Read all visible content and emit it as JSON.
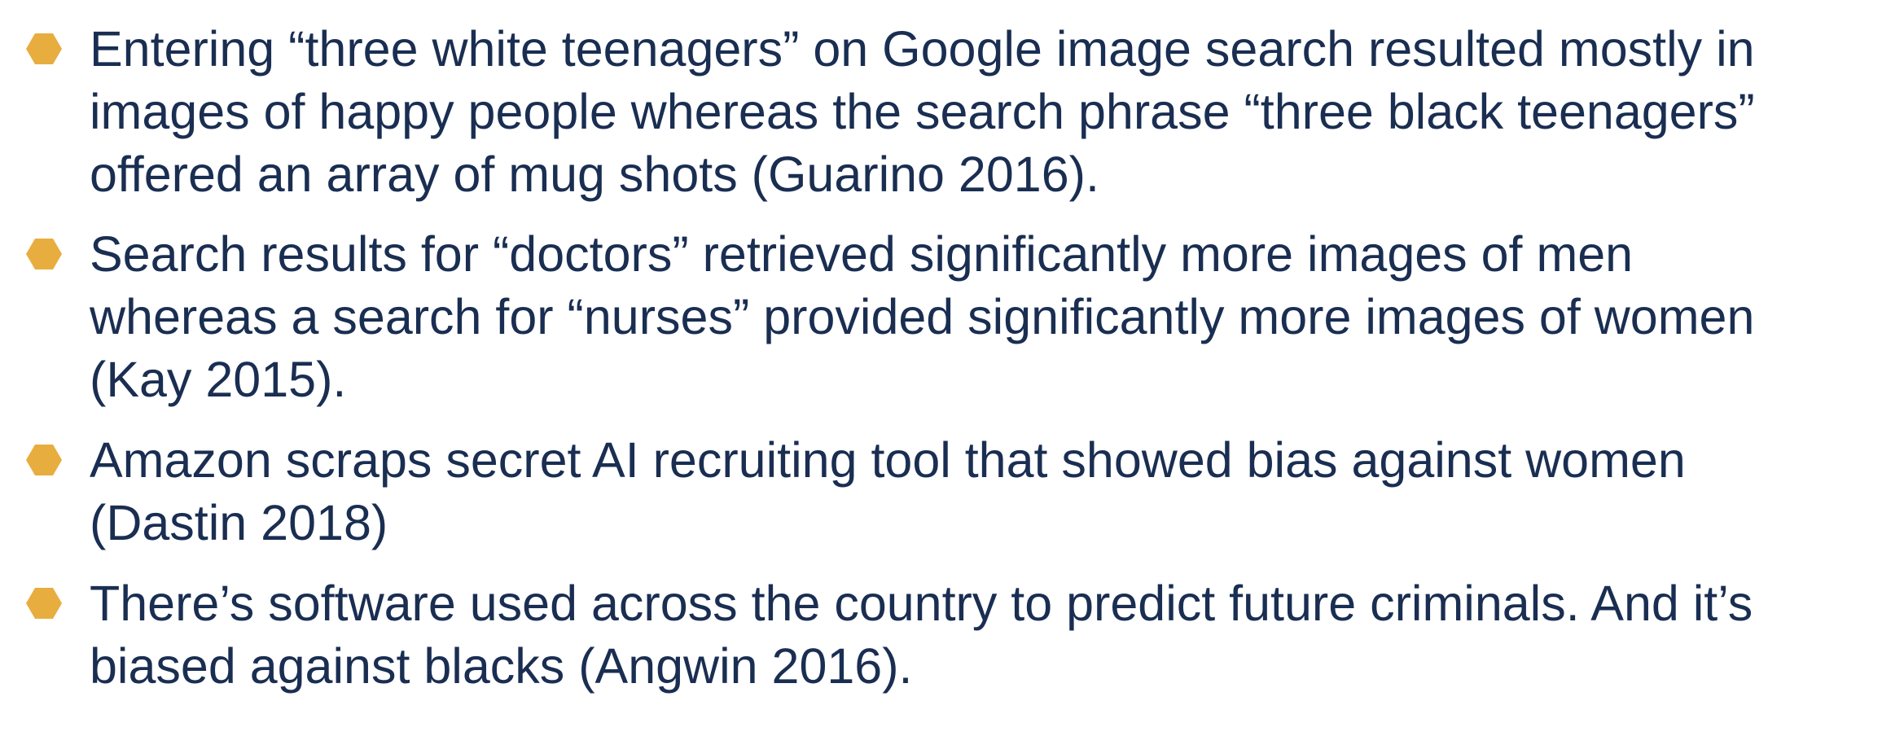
{
  "colors": {
    "bullet": "#e8ad3f",
    "text": "#1a2e52",
    "background": "#ffffff"
  },
  "bullets": [
    {
      "icon": "hexagon-bullet-icon",
      "text": "Entering “three white teenagers” on Google image search resulted mostly in\nimages of happy people whereas the search phrase “three black teenagers”\noffered an array of mug shots (Guarino 2016)."
    },
    {
      "icon": "hexagon-bullet-icon",
      "text": "Search results for “doctors” retrieved significantly more images of men\nwhereas a search for “nurses” provided significantly more images of women\n(Kay 2015)."
    },
    {
      "icon": "hexagon-bullet-icon",
      "text": "Amazon scraps secret AI recruiting tool that showed bias against women\n(Dastin 2018)"
    },
    {
      "icon": "hexagon-bullet-icon",
      "text": "There’s software used across the country to predict future criminals. And it’s\nbiased against blacks (Angwin 2016)."
    }
  ]
}
